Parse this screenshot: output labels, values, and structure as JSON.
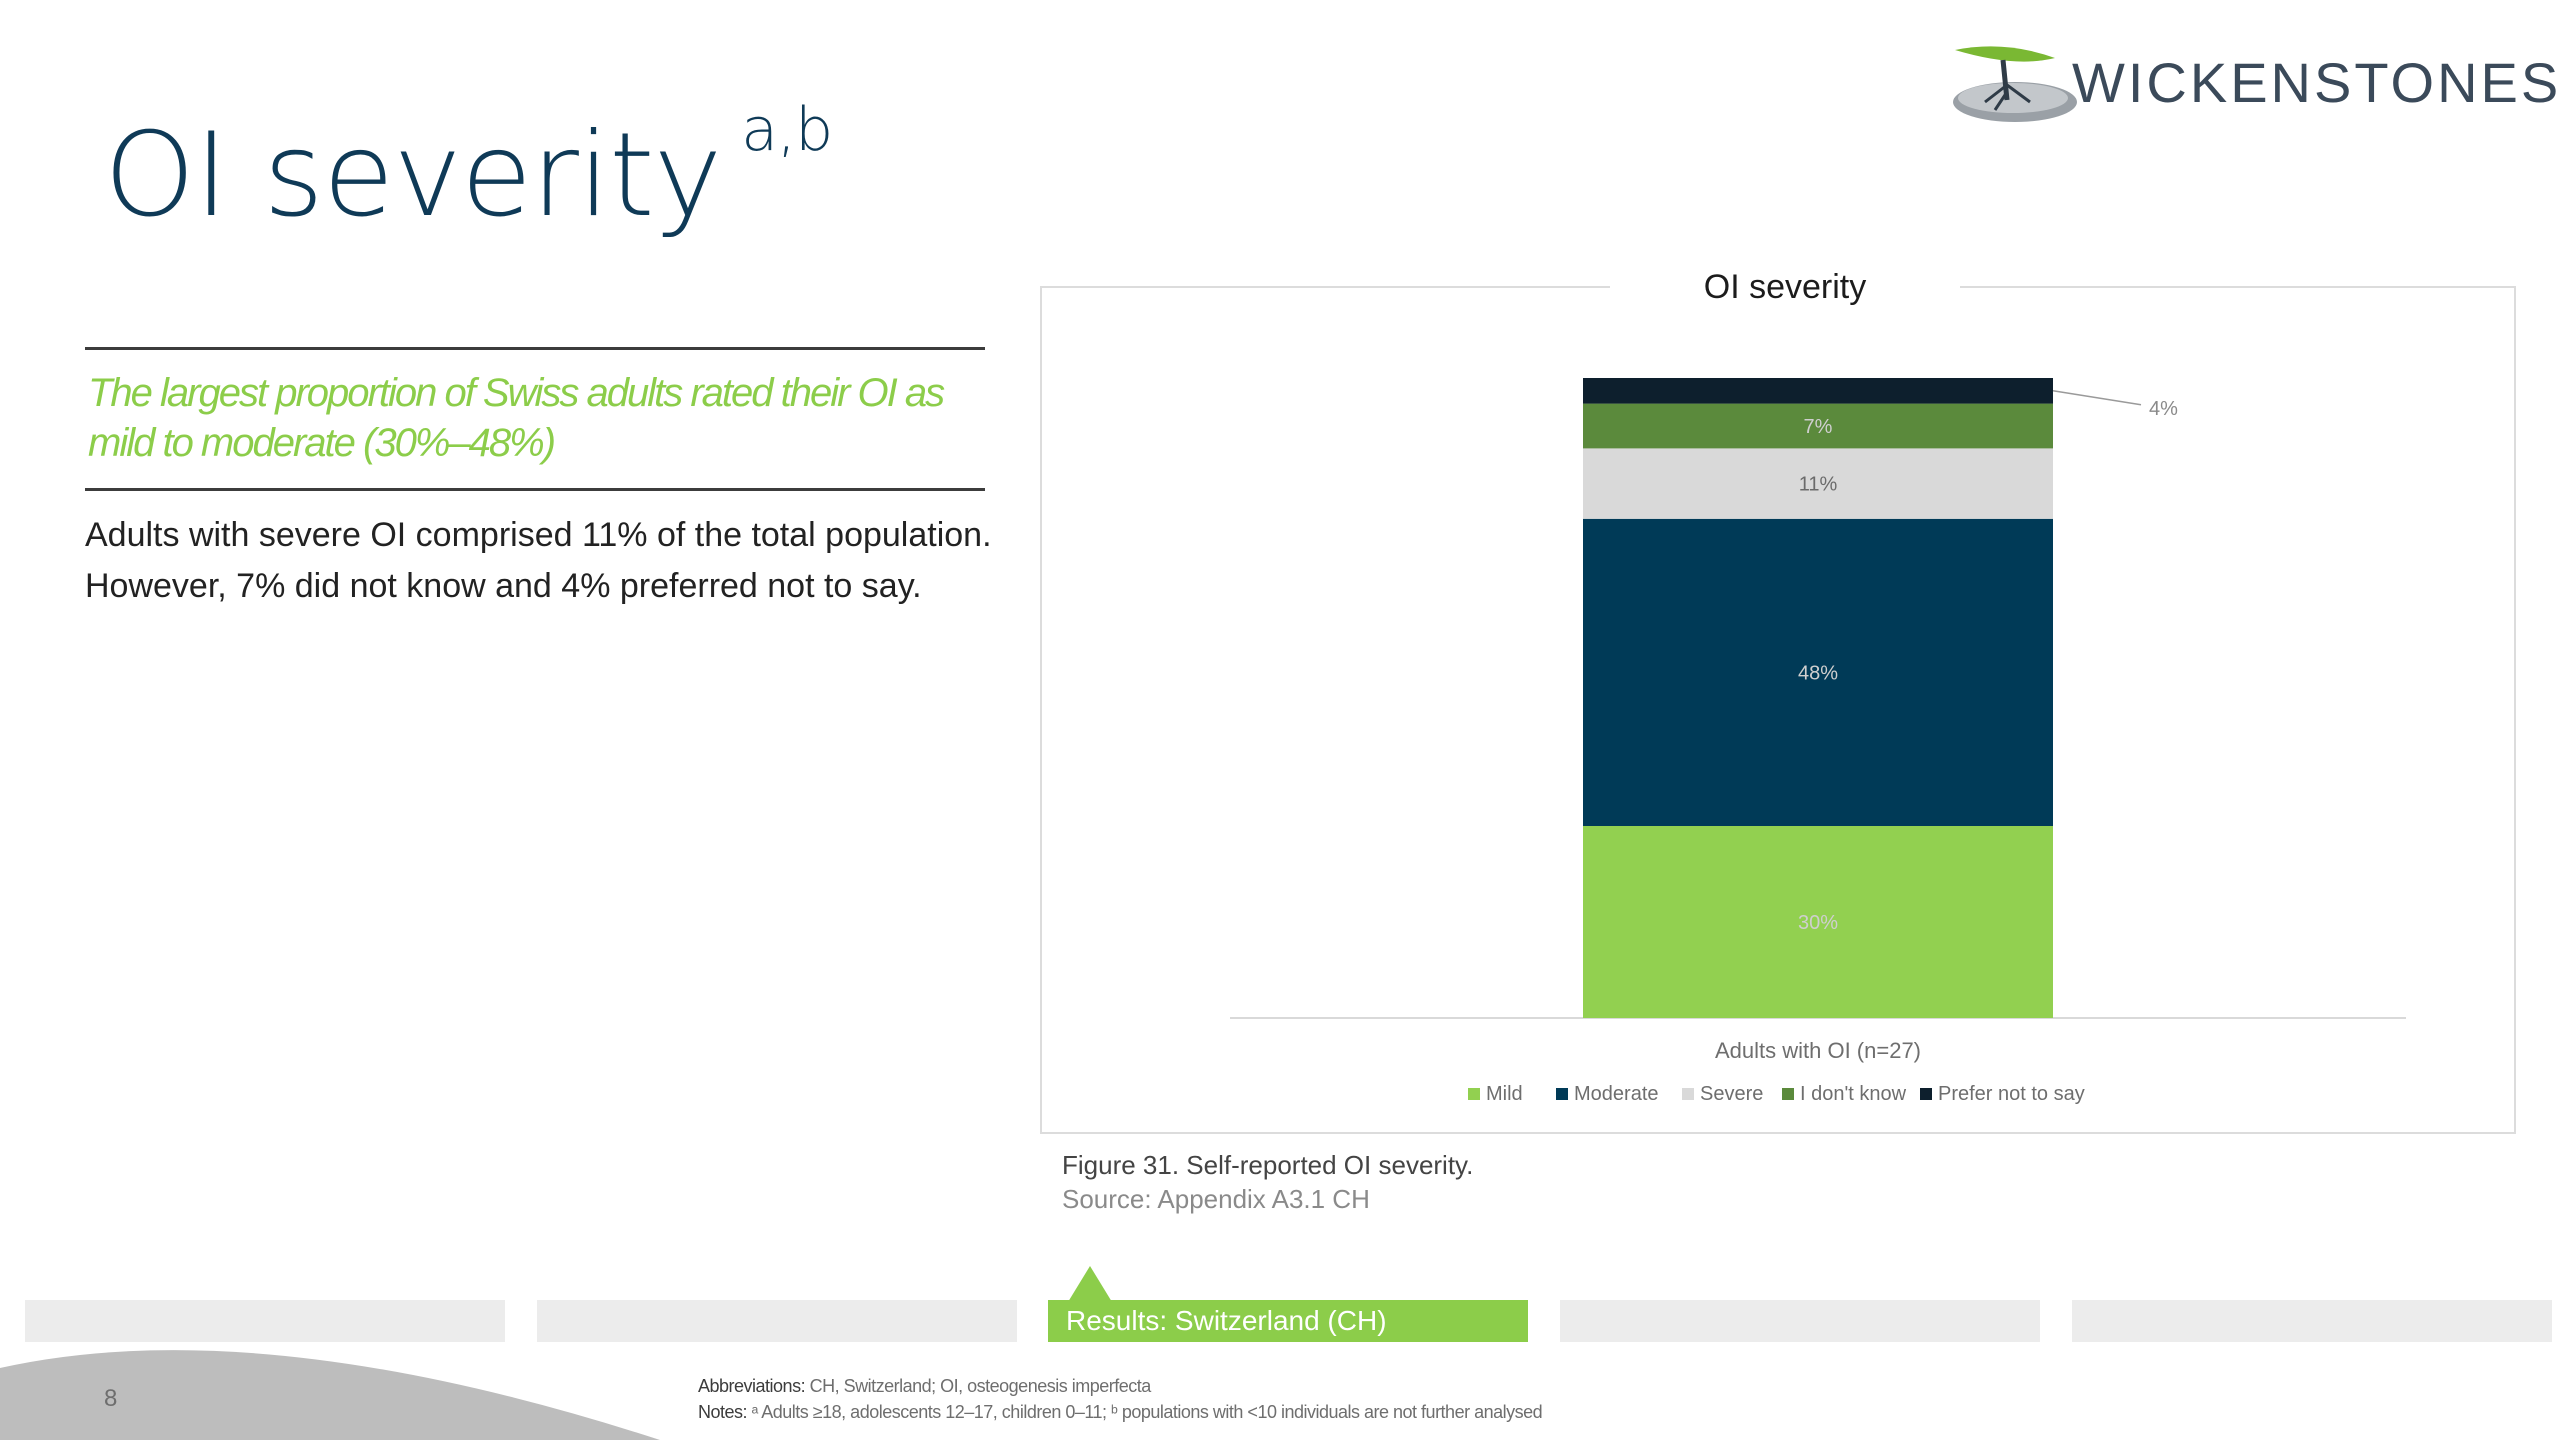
{
  "page": {
    "title": "OI severity",
    "title_sup": "a,b",
    "headline": "The largest proportion of Swiss adults rated their OI as mild to moderate (30%–48%)",
    "body": "Adults with severe OI comprised 11% of the total population. However, 7% did not know and 4% preferred not to say."
  },
  "logo": {
    "text": "WICKENSTONES",
    "icon": "tree-logo-icon"
  },
  "chart_data": {
    "type": "bar",
    "stacked": true,
    "title": "OI severity",
    "categories": [
      "Adults with OI (n=27)"
    ],
    "series": [
      {
        "name": "Mild",
        "values": [
          30
        ],
        "label": "30%",
        "color": "#92d050"
      },
      {
        "name": "Moderate",
        "values": [
          48
        ],
        "label": "48%",
        "color": "#003a57"
      },
      {
        "name": "Severe",
        "values": [
          11
        ],
        "label": "11%",
        "color": "#d9d9d9"
      },
      {
        "name": "I don't know",
        "values": [
          7
        ],
        "label": "7%",
        "color": "#5b8a3c"
      },
      {
        "name": "Prefer not to say",
        "values": [
          4
        ],
        "label": "4%",
        "color": "#0d1f2d"
      }
    ],
    "ylim": [
      0,
      100
    ],
    "legend_position": "bottom",
    "grid": false
  },
  "caption": {
    "figure": "Figure 31. Self-reported OI severity.",
    "source": "Source: Appendix A3.1 CH"
  },
  "nav": {
    "tabs": [
      "",
      "",
      "Results: Switzerland (CH)",
      "",
      ""
    ],
    "active_index": 2
  },
  "footer": {
    "page_number": "8",
    "abbrev_label": "Abbreviations:",
    "abbrev_text": "CH, Switzerland; OI, osteogenesis imperfecta",
    "notes_label": "Notes:",
    "notes_text": "ᵃ Adults ≥18, adolescents 12–17, children 0–11; ᵇ populations with <10 individuals are not further analysed"
  }
}
